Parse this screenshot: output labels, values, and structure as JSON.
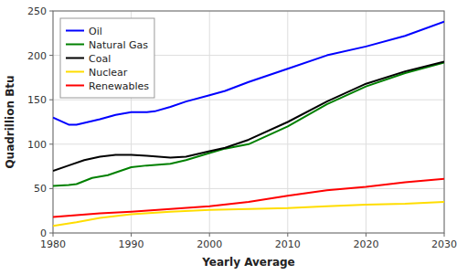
{
  "chart_data": {
    "type": "line",
    "xlabel": "Yearly Average",
    "ylabel": "Quadrillion Btu",
    "xlim": [
      1980,
      2030
    ],
    "ylim": [
      0,
      250
    ],
    "xticks": [
      1980,
      1990,
      2000,
      2010,
      2020,
      2030
    ],
    "yticks": [
      0,
      50,
      100,
      150,
      200,
      250
    ],
    "grid": true,
    "legend": "upper left",
    "series": [
      {
        "name": "Oil",
        "color": "#0000ff",
        "x": [
          1980,
          1982,
          1983,
          1985,
          1986,
          1988,
          1990,
          1992,
          1993,
          1995,
          1997,
          2000,
          2002,
          2005,
          2010,
          2015,
          2020,
          2025,
          2030
        ],
        "values": [
          130,
          122,
          122,
          126,
          128,
          133,
          136,
          136,
          137,
          142,
          148,
          155,
          160,
          170,
          185,
          200,
          210,
          222,
          238
        ]
      },
      {
        "name": "Natural Gas",
        "color": "#008000",
        "x": [
          1980,
          1982,
          1983,
          1985,
          1987,
          1990,
          1992,
          1995,
          1997,
          2000,
          2002,
          2005,
          2010,
          2015,
          2020,
          2025,
          2030
        ],
        "values": [
          53,
          54,
          55,
          62,
          65,
          74,
          76,
          78,
          82,
          90,
          95,
          100,
          120,
          145,
          165,
          180,
          192
        ]
      },
      {
        "name": "Coal",
        "color": "#000000",
        "x": [
          1980,
          1982,
          1984,
          1986,
          1988,
          1990,
          1992,
          1995,
          1997,
          2000,
          2002,
          2005,
          2010,
          2015,
          2020,
          2025,
          2030
        ],
        "values": [
          70,
          76,
          82,
          86,
          88,
          88,
          87,
          85,
          86,
          92,
          96,
          105,
          125,
          148,
          168,
          182,
          193
        ]
      },
      {
        "name": "Nuclear",
        "color": "#ffdd00",
        "x": [
          1980,
          1983,
          1986,
          1990,
          1995,
          2000,
          2005,
          2010,
          2015,
          2020,
          2025,
          2030
        ],
        "values": [
          8,
          12,
          17,
          21,
          24,
          26,
          27,
          28,
          30,
          32,
          33,
          35
        ]
      },
      {
        "name": "Renewables",
        "color": "#ff0000",
        "x": [
          1980,
          1983,
          1986,
          1990,
          1995,
          2000,
          2005,
          2010,
          2015,
          2020,
          2025,
          2030
        ],
        "values": [
          18,
          20,
          22,
          24,
          27,
          30,
          35,
          42,
          48,
          52,
          57,
          61
        ]
      }
    ]
  }
}
